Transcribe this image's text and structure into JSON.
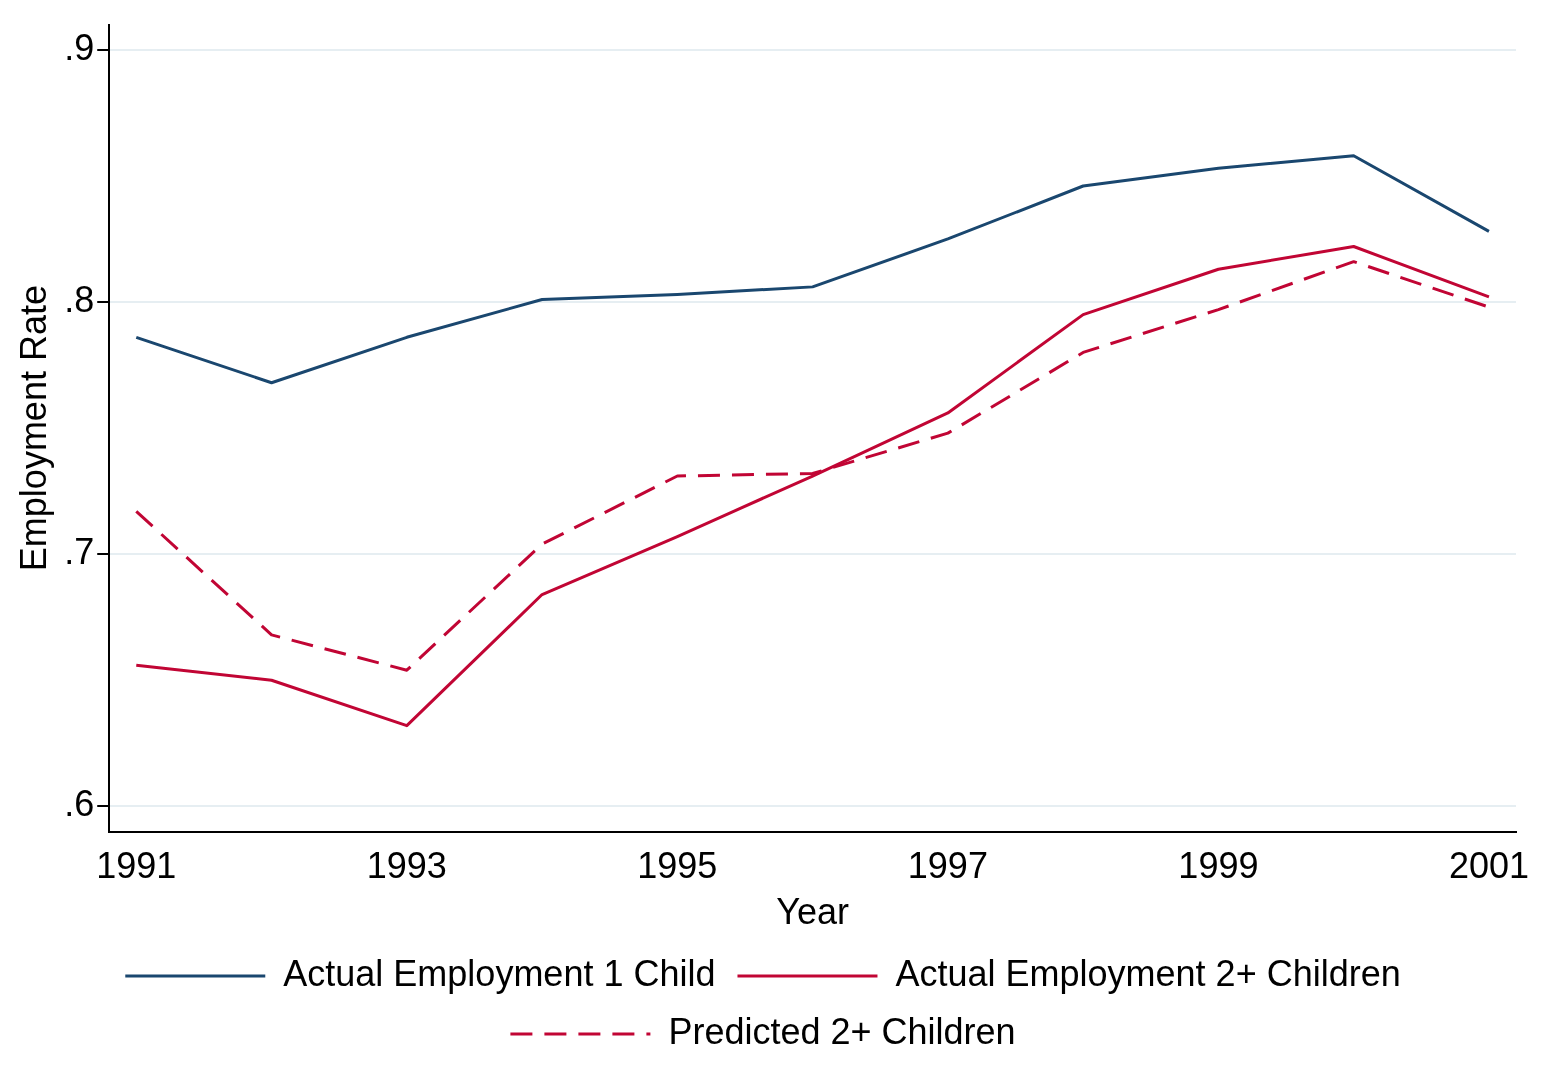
{
  "chart_data": {
    "type": "line",
    "xlabel": "Year",
    "ylabel": "Employment Rate",
    "x": [
      1991,
      1992,
      1993,
      1994,
      1995,
      1996,
      1997,
      1998,
      1999,
      2000,
      2001
    ],
    "series": [
      {
        "name": "Actual Employment 1 Child",
        "color": "#1a476f",
        "line_style": "solid",
        "values": [
          0.786,
          0.768,
          0.786,
          0.801,
          0.803,
          0.806,
          0.825,
          0.846,
          0.853,
          0.858,
          0.828
        ]
      },
      {
        "name": "Actual Employment 2+ Children",
        "color": "#c10534",
        "line_style": "solid",
        "values": [
          0.656,
          0.65,
          0.632,
          0.684,
          0.707,
          0.731,
          0.756,
          0.795,
          0.813,
          0.822,
          0.802
        ]
      },
      {
        "name": "Predicted 2+ Children",
        "color": "#c10534",
        "line_style": "dashed",
        "values": [
          0.717,
          0.668,
          0.654,
          0.704,
          0.731,
          0.732,
          0.748,
          0.78,
          0.797,
          0.816,
          0.798
        ]
      }
    ],
    "xlim": [
      1990.8,
      2001.2
    ],
    "xticks": [
      1991,
      1993,
      1995,
      1997,
      1999,
      2001
    ],
    "ylim": [
      0.59,
      0.91
    ],
    "yticks": [
      {
        "value": 0.6,
        "label": ".6"
      },
      {
        "value": 0.7,
        "label": ".7"
      },
      {
        "value": 0.8,
        "label": ".8"
      },
      {
        "value": 0.9,
        "label": ".9"
      }
    ],
    "grid": "y",
    "legend": "bottom",
    "marker": "none"
  }
}
